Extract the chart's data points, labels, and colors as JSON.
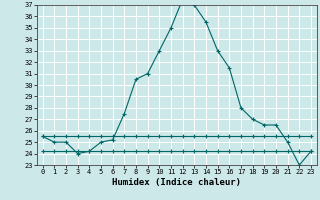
{
  "title": "",
  "xlabel": "Humidex (Indice chaleur)",
  "background_color": "#cce8e8",
  "grid_color": "#ffffff",
  "line_color": "#006666",
  "x": [
    0,
    1,
    2,
    3,
    4,
    5,
    6,
    7,
    8,
    9,
    10,
    11,
    12,
    13,
    14,
    15,
    16,
    17,
    18,
    19,
    20,
    21,
    22,
    23
  ],
  "y_main": [
    25.5,
    25.0,
    25.0,
    24.0,
    24.2,
    25.0,
    25.2,
    27.5,
    30.5,
    31.0,
    33.0,
    35.0,
    37.5,
    37.0,
    35.5,
    33.0,
    31.5,
    28.0,
    27.0,
    26.5,
    26.5,
    25.0,
    23.0,
    24.2
  ],
  "y_flat1": [
    25.5,
    25.5,
    25.5,
    25.5,
    25.5,
    25.5,
    25.5,
    25.5,
    25.5,
    25.5,
    25.5,
    25.5,
    25.5,
    25.5,
    25.5,
    25.5,
    25.5,
    25.5,
    25.5,
    25.5,
    25.5,
    25.5,
    25.5,
    25.5
  ],
  "y_flat2": [
    24.2,
    24.2,
    24.2,
    24.2,
    24.2,
    24.2,
    24.2,
    24.2,
    24.2,
    24.2,
    24.2,
    24.2,
    24.2,
    24.2,
    24.2,
    24.2,
    24.2,
    24.2,
    24.2,
    24.2,
    24.2,
    24.2,
    24.2,
    24.2
  ],
  "ylim": [
    23,
    37
  ],
  "xlim": [
    -0.5,
    23.5
  ],
  "yticks": [
    23,
    24,
    25,
    26,
    27,
    28,
    29,
    30,
    31,
    32,
    33,
    34,
    35,
    36,
    37
  ],
  "xticks": [
    0,
    1,
    2,
    3,
    4,
    5,
    6,
    7,
    8,
    9,
    10,
    11,
    12,
    13,
    14,
    15,
    16,
    17,
    18,
    19,
    20,
    21,
    22,
    23
  ],
  "marker": "+",
  "markersize": 3,
  "linewidth": 0.8,
  "fontsize_ticks": 5,
  "fontsize_label": 6.5
}
